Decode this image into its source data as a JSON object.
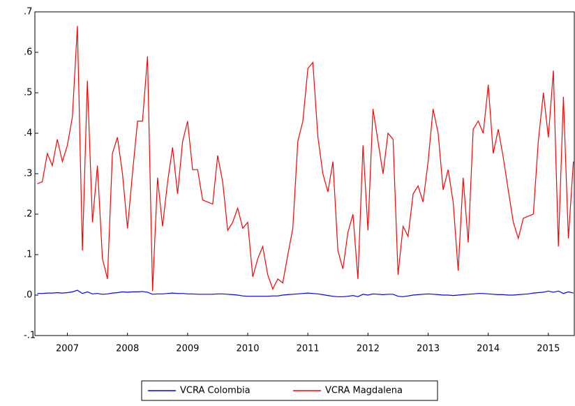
{
  "chart_data": {
    "type": "line",
    "x": [
      2007.0,
      2007.083,
      2007.167,
      2007.25,
      2007.333,
      2007.417,
      2007.5,
      2007.583,
      2007.667,
      2007.75,
      2007.833,
      2007.917,
      2008.0,
      2008.083,
      2008.167,
      2008.25,
      2008.333,
      2008.417,
      2008.5,
      2008.583,
      2008.667,
      2008.75,
      2008.833,
      2008.917,
      2009.0,
      2009.083,
      2009.167,
      2009.25,
      2009.333,
      2009.417,
      2009.5,
      2009.583,
      2009.667,
      2009.75,
      2009.833,
      2009.917,
      2010.0,
      2010.083,
      2010.167,
      2010.25,
      2010.333,
      2010.417,
      2010.5,
      2010.583,
      2010.667,
      2010.75,
      2010.833,
      2010.917,
      2011.0,
      2011.083,
      2011.167,
      2011.25,
      2011.333,
      2011.417,
      2011.5,
      2011.583,
      2011.667,
      2011.75,
      2011.833,
      2011.917,
      2012.0,
      2012.083,
      2012.167,
      2012.25,
      2012.333,
      2012.417,
      2012.5,
      2012.583,
      2012.667,
      2012.75,
      2012.833,
      2012.917,
      2013.0,
      2013.083,
      2013.167,
      2013.25,
      2013.333,
      2013.417,
      2013.5,
      2013.583,
      2013.667,
      2013.75,
      2013.833,
      2013.917,
      2014.0,
      2014.083,
      2014.167,
      2014.25,
      2014.333,
      2014.417,
      2014.5,
      2014.583,
      2014.667,
      2014.75,
      2014.833,
      2014.917,
      2015.0,
      2015.083,
      2015.167,
      2015.25,
      2015.333,
      2015.417,
      2015.5,
      2015.583,
      2015.667,
      2015.75,
      2015.833,
      2015.917
    ],
    "series": [
      {
        "name": "VCRA Colombia",
        "color": "#0000ff",
        "values": [
          0.004,
          0.004,
          0.005,
          0.005,
          0.006,
          0.005,
          0.006,
          0.008,
          0.012,
          0.004,
          0.008,
          0.003,
          0.004,
          0.002,
          0.003,
          0.005,
          0.006,
          0.008,
          0.007,
          0.008,
          0.008,
          0.009,
          0.007,
          0.002,
          0.003,
          0.003,
          0.004,
          0.005,
          0.004,
          0.004,
          0.003,
          0.003,
          0.002,
          0.002,
          0.002,
          0.002,
          0.003,
          0.003,
          0.002,
          0.001,
          0.0,
          -0.002,
          -0.003,
          -0.003,
          -0.003,
          -0.003,
          -0.003,
          -0.002,
          -0.002,
          0.0,
          0.001,
          0.002,
          0.003,
          0.004,
          0.005,
          0.004,
          0.003,
          0.001,
          -0.001,
          -0.003,
          -0.004,
          -0.004,
          -0.003,
          -0.001,
          -0.004,
          0.002,
          0.0,
          0.003,
          0.002,
          0.001,
          0.002,
          0.002,
          -0.003,
          -0.004,
          -0.002,
          0.0,
          0.001,
          0.002,
          0.003,
          0.002,
          0.001,
          0.0,
          0.0,
          -0.001,
          0.0,
          0.001,
          0.002,
          0.003,
          0.004,
          0.004,
          0.003,
          0.002,
          0.001,
          0.001,
          0.0,
          0.0,
          0.001,
          0.002,
          0.003,
          0.005,
          0.006,
          0.007,
          0.01,
          0.007,
          0.01,
          0.004,
          0.008,
          0.005
        ]
      },
      {
        "name": "VCRA Magdalena",
        "color": "#ff0000",
        "values": [
          0.275,
          0.28,
          0.35,
          0.32,
          0.385,
          0.33,
          0.37,
          0.44,
          0.665,
          0.11,
          0.53,
          0.18,
          0.32,
          0.09,
          0.04,
          0.35,
          0.39,
          0.3,
          0.165,
          0.3,
          0.43,
          0.43,
          0.59,
          0.01,
          0.29,
          0.17,
          0.28,
          0.365,
          0.25,
          0.38,
          0.43,
          0.31,
          0.31,
          0.235,
          0.23,
          0.225,
          0.345,
          0.28,
          0.16,
          0.18,
          0.215,
          0.165,
          0.18,
          0.045,
          0.09,
          0.12,
          0.05,
          0.015,
          0.04,
          0.03,
          0.1,
          0.165,
          0.38,
          0.43,
          0.56,
          0.575,
          0.39,
          0.3,
          0.255,
          0.33,
          0.11,
          0.065,
          0.155,
          0.2,
          0.04,
          0.37,
          0.16,
          0.46,
          0.38,
          0.3,
          0.4,
          0.385,
          0.05,
          0.17,
          0.145,
          0.25,
          0.27,
          0.23,
          0.33,
          0.46,
          0.4,
          0.26,
          0.31,
          0.23,
          0.06,
          0.29,
          0.13,
          0.41,
          0.43,
          0.4,
          0.52,
          0.35,
          0.41,
          0.34,
          0.26,
          0.18,
          0.14,
          0.19,
          0.195,
          0.2,
          0.38,
          0.5,
          0.39,
          0.555,
          0.12,
          0.49,
          0.14,
          0.33
        ]
      }
    ],
    "xlim": [
      2006.96,
      2015.92
    ],
    "xticks": [
      {
        "value": 2007.5,
        "label": "2007"
      },
      {
        "value": 2008.5,
        "label": "2008"
      },
      {
        "value": 2009.5,
        "label": "2009"
      },
      {
        "value": 2010.5,
        "label": "2010"
      },
      {
        "value": 2011.5,
        "label": "2011"
      },
      {
        "value": 2012.5,
        "label": "2012"
      },
      {
        "value": 2013.5,
        "label": "2013"
      },
      {
        "value": 2014.5,
        "label": "2014"
      },
      {
        "value": 2015.5,
        "label": "2015"
      }
    ],
    "ylim": [
      -0.1,
      0.7
    ],
    "yticks": [
      {
        "value": -0.1,
        "label": "-.1"
      },
      {
        "value": 0.0,
        "label": ".0"
      },
      {
        "value": 0.1,
        "label": ".1"
      },
      {
        "value": 0.2,
        "label": ".2"
      },
      {
        "value": 0.3,
        "label": ".3"
      },
      {
        "value": 0.4,
        "label": ".4"
      },
      {
        "value": 0.5,
        "label": ".5"
      },
      {
        "value": 0.6,
        "label": ".6"
      },
      {
        "value": 0.7,
        "label": ".7"
      }
    ],
    "legend": "bottom"
  }
}
